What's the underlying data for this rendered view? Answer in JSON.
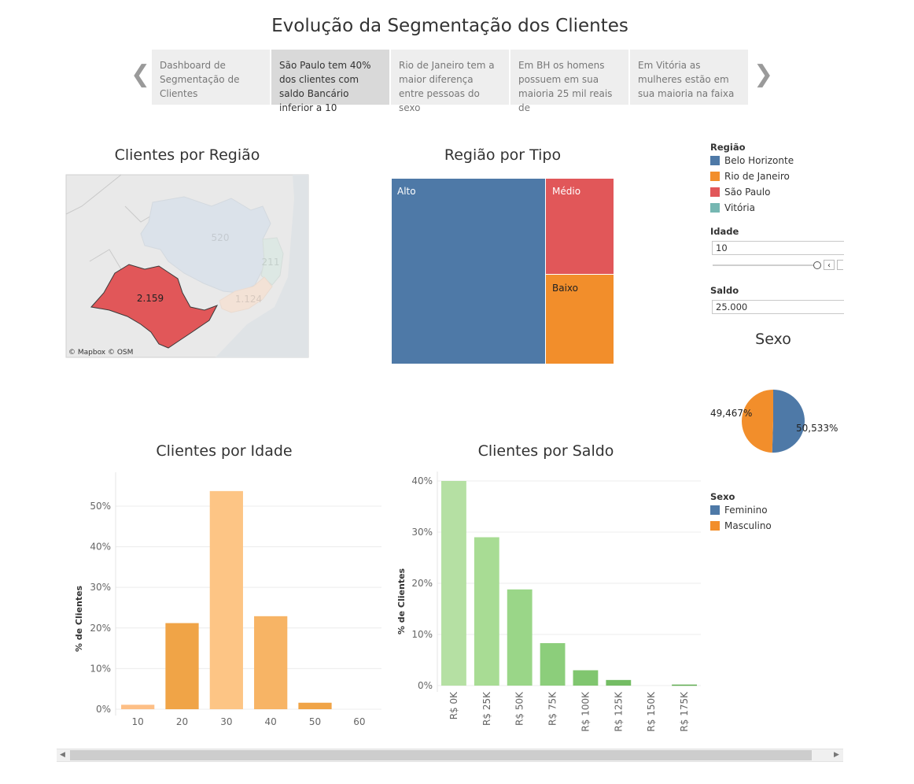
{
  "story": {
    "title": "Evolução da Segmentação dos Clientes",
    "points": [
      {
        "text": "Dashboard de Segmentação de Clientes",
        "active": false
      },
      {
        "text": "São Paulo tem 40% dos clientes com saldo Bancário inferior a 10",
        "active": true
      },
      {
        "text": "Rio de Janeiro tem a maior diferença entre pessoas do sexo",
        "active": false
      },
      {
        "text": "Em BH os homens possuem em sua maioria 25 mil reais de",
        "active": false
      },
      {
        "text": "Em Vitória as mulheres estão em sua maioria na faixa",
        "active": false
      }
    ],
    "prev_icon": "chevron-left-icon",
    "next_icon": "chevron-right-icon"
  },
  "map": {
    "title": "Clientes por Região",
    "attribution": "© Mapbox © OSM",
    "labels": {
      "sao_paulo": "2.159",
      "minas": "520",
      "espirito_santo": "211",
      "rio": "1.124"
    }
  },
  "treemap": {
    "title": "Região por Tipo",
    "labels": {
      "alto": "Alto",
      "medio": "Médio",
      "baixo": "Baixo"
    }
  },
  "legend_regiao": {
    "title": "Região",
    "items": [
      {
        "label": "Belo Horizonte",
        "color": "#4e79a7"
      },
      {
        "label": "Rio de Janeiro",
        "color": "#f28e2b"
      },
      {
        "label": "São Paulo",
        "color": "#e15759"
      },
      {
        "label": "Vitória",
        "color": "#76b7b2"
      }
    ]
  },
  "filters": {
    "idade": {
      "title": "Idade",
      "value": "10"
    },
    "saldo": {
      "title": "Saldo",
      "value": "25.000"
    }
  },
  "pie": {
    "title": "Sexo",
    "labels": {
      "masculino": "49,467%",
      "feminino": "50,533%"
    }
  },
  "legend_sexo": {
    "title": "Sexo",
    "items": [
      {
        "label": "Feminino",
        "color": "#4e79a7"
      },
      {
        "label": "Masculino",
        "color": "#f28e2b"
      }
    ]
  },
  "idade_chart": {
    "title": "Clientes por Idade"
  },
  "saldo_chart": {
    "title": "Clientes por Saldo"
  },
  "chart_data": [
    {
      "type": "pie",
      "title": "Sexo",
      "slices": [
        {
          "label": "Feminino",
          "value": 50.533,
          "color": "#4e79a7"
        },
        {
          "label": "Masculino",
          "value": 49.467,
          "color": "#f28e2b"
        }
      ]
    },
    {
      "type": "bar",
      "title": "Clientes por Idade",
      "ylabel": "% de Clientes",
      "categories": [
        "10",
        "20",
        "30",
        "40",
        "50",
        "60"
      ],
      "values": [
        1.1,
        21.2,
        53.7,
        22.9,
        1.6,
        0
      ],
      "yticks": [
        "0%",
        "10%",
        "20%",
        "30%",
        "40%",
        "50%"
      ],
      "ylim": [
        0,
        56
      ],
      "colors": [
        "#fdbf86",
        "#f0a447",
        "#fdc585",
        "#f7b465",
        "#f0a447",
        "#fdc585"
      ]
    },
    {
      "type": "bar",
      "title": "Clientes por Saldo",
      "ylabel": "% de Clientes",
      "categories": [
        "R$ 0K",
        "R$ 25K",
        "R$ 50K",
        "R$ 75K",
        "R$ 100K",
        "R$ 125K",
        "R$ 150K",
        "R$ 175K"
      ],
      "values": [
        40,
        29,
        18.8,
        8.3,
        3,
        1.1,
        0,
        0.2
      ],
      "yticks": [
        "0%",
        "10%",
        "20%",
        "30%",
        "40%"
      ],
      "ylim": [
        0,
        40
      ],
      "colors": [
        "#b5e0a3",
        "#a8dc94",
        "#9ad688",
        "#8cce7b",
        "#80c66f",
        "#74bd64",
        "#6ab55a",
        "#60ad52"
      ]
    },
    {
      "type": "treemap",
      "title": "Região por Tipo",
      "items": [
        {
          "label": "Alto",
          "value": 0.69,
          "color": "#4e79a7"
        },
        {
          "label": "Médio",
          "value": 0.13,
          "color": "#e15759"
        },
        {
          "label": "Baixo",
          "value": 0.18,
          "color": "#f28e2b"
        }
      ]
    }
  ]
}
